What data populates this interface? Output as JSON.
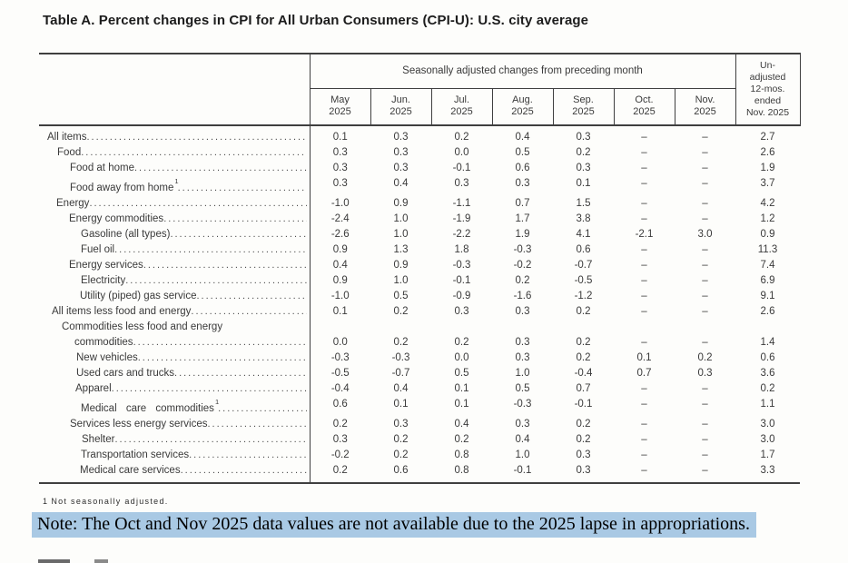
{
  "title": "Table A. Percent changes in CPI for All Urban Consumers (CPI-U): U.S. city average",
  "table": {
    "group_header": "Seasonally adjusted changes from preceding month",
    "month_columns": [
      "May\n2025",
      "Jun.\n2025",
      "Jul.\n2025",
      "Aug.\n2025",
      "Sep.\n2025",
      "Oct.\n2025",
      "Nov.\n2025"
    ],
    "unadjusted_header": "Un-\nadjusted\n12-mos.\nended\nNov. 2025",
    "rows": [
      {
        "label": "All items",
        "indent": 9,
        "values": [
          "0.1",
          "0.3",
          "0.2",
          "0.4",
          "0.3",
          "–",
          "–",
          "2.7"
        ]
      },
      {
        "label": "Food",
        "indent": 20,
        "values": [
          "0.3",
          "0.3",
          "0.0",
          "0.5",
          "0.2",
          "–",
          "–",
          "2.6"
        ]
      },
      {
        "label": "Food at home",
        "indent": 34,
        "values": [
          "0.3",
          "0.3",
          "-0.1",
          "0.6",
          "0.3",
          "–",
          "–",
          "1.9"
        ]
      },
      {
        "label": "Food away from home",
        "sup": "1",
        "indent": 34,
        "values": [
          "0.3",
          "0.4",
          "0.3",
          "0.3",
          "0.1",
          "–",
          "–",
          "3.7"
        ]
      },
      {
        "label": "Energy",
        "indent": 19,
        "values": [
          "-1.0",
          "0.9",
          "-1.1",
          "0.7",
          "1.5",
          "–",
          "–",
          "4.2"
        ]
      },
      {
        "label": "Energy commodities",
        "indent": 33,
        "values": [
          "-2.4",
          "1.0",
          "-1.9",
          "1.7",
          "3.8",
          "–",
          "–",
          "1.2"
        ]
      },
      {
        "label": "Gasoline (all types)",
        "indent": 46,
        "values": [
          "-2.6",
          "1.0",
          "-2.2",
          "1.9",
          "4.1",
          "-2.1",
          "3.0",
          "0.9"
        ]
      },
      {
        "label": "Fuel oil",
        "indent": 46,
        "values": [
          "0.9",
          "1.3",
          "1.8",
          "-0.3",
          "0.6",
          "–",
          "–",
          "11.3"
        ]
      },
      {
        "label": "Energy services",
        "indent": 33,
        "values": [
          "0.4",
          "0.9",
          "-0.3",
          "-0.2",
          "-0.7",
          "–",
          "–",
          "7.4"
        ]
      },
      {
        "label": "Electricity",
        "indent": 46,
        "values": [
          "0.9",
          "1.0",
          "-0.1",
          "0.2",
          "-0.5",
          "–",
          "–",
          "6.9"
        ]
      },
      {
        "label": "Utility (piped) gas service",
        "indent": 45,
        "values": [
          "-1.0",
          "0.5",
          "-0.9",
          "-1.6",
          "-1.2",
          "–",
          "–",
          "9.1"
        ]
      },
      {
        "label": "All items less food and energy",
        "indent": 14,
        "values": [
          "0.1",
          "0.2",
          "0.3",
          "0.3",
          "0.2",
          "–",
          "–",
          "2.6"
        ]
      },
      {
        "label": "Commodities less food and energy",
        "label_line2": "commodities",
        "indent": 25,
        "indent2": 39,
        "values": [
          "0.0",
          "0.2",
          "0.2",
          "0.3",
          "0.2",
          "–",
          "–",
          "1.4"
        ]
      },
      {
        "label": "New vehicles",
        "indent": 41,
        "values": [
          "-0.3",
          "-0.3",
          "0.0",
          "0.3",
          "0.2",
          "0.1",
          "0.2",
          "0.6"
        ]
      },
      {
        "label": "Used cars and trucks",
        "indent": 41,
        "values": [
          "-0.5",
          "-0.7",
          "0.5",
          "1.0",
          "-0.4",
          "0.7",
          "0.3",
          "3.6"
        ]
      },
      {
        "label": "Apparel",
        "indent": 40,
        "values": [
          "-0.4",
          "0.4",
          "0.1",
          "0.5",
          "0.7",
          "–",
          "–",
          "0.2"
        ]
      },
      {
        "label": "Medical care commodities",
        "sup": "1",
        "wide_spacing": true,
        "indent": 46,
        "values": [
          "0.6",
          "0.1",
          "0.1",
          "-0.3",
          "-0.1",
          "–",
          "–",
          "1.1"
        ]
      },
      {
        "label": "Services less energy services",
        "indent": 34,
        "values": [
          "0.2",
          "0.3",
          "0.4",
          "0.3",
          "0.2",
          "–",
          "–",
          "3.0"
        ]
      },
      {
        "label": "Shelter",
        "indent": 47,
        "values": [
          "0.3",
          "0.2",
          "0.2",
          "0.4",
          "0.2",
          "–",
          "–",
          "3.0"
        ]
      },
      {
        "label": "Transportation services",
        "indent": 46,
        "values": [
          "-0.2",
          "0.2",
          "0.8",
          "1.0",
          "0.3",
          "–",
          "–",
          "1.7"
        ]
      },
      {
        "label": "Medical care services",
        "indent": 45,
        "values": [
          "0.2",
          "0.6",
          "0.8",
          "-0.1",
          "0.3",
          "–",
          "–",
          "3.3"
        ]
      }
    ]
  },
  "footnote": {
    "marker": "1",
    "text": "Not seasonally adjusted."
  },
  "note": "Note: The Oct and Nov 2025 data values are not available due to the 2025 lapse in appropriations.",
  "colors": {
    "note_highlight": "#a9c9e4",
    "border": "#3f3f3f",
    "text": "#3a3a3a"
  }
}
